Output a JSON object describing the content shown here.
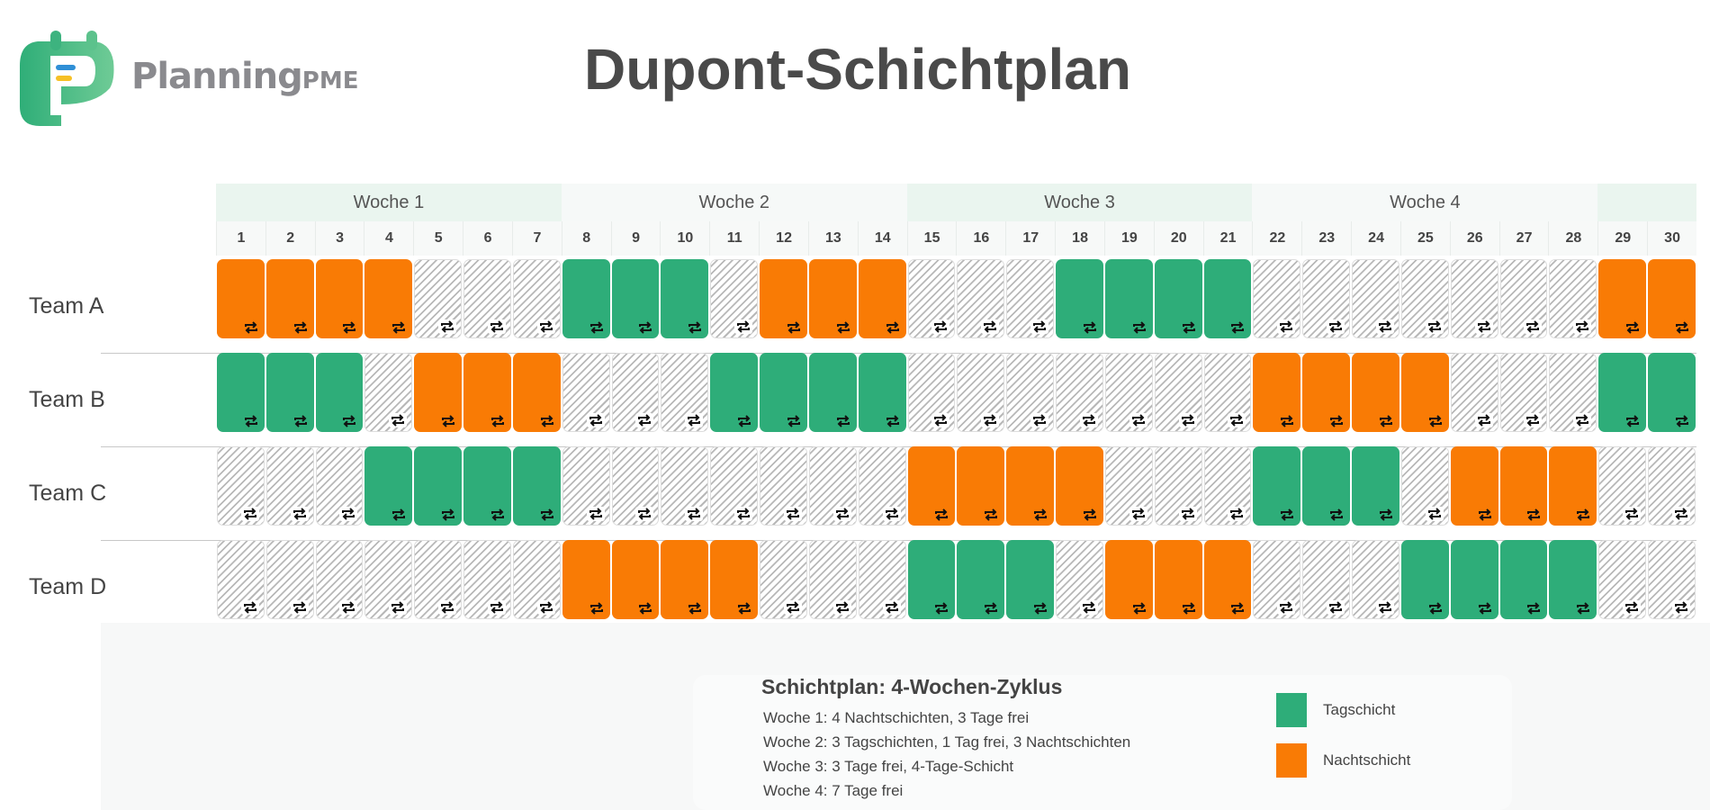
{
  "brand": {
    "name": "Planning",
    "suffix": "PME"
  },
  "title": "Dupont-Schichtplan",
  "colors": {
    "night": "#f97b05",
    "day": "#2ead79",
    "off": "hatched-grey"
  },
  "weeks": [
    {
      "label": "Woche 1",
      "days": 7
    },
    {
      "label": "Woche 2",
      "days": 7
    },
    {
      "label": "Woche 3",
      "days": 7
    },
    {
      "label": "Woche 4",
      "days": 7
    },
    {
      "label": "",
      "days": 2
    }
  ],
  "days": [
    "1",
    "2",
    "3",
    "4",
    "5",
    "6",
    "7",
    "8",
    "9",
    "10",
    "11",
    "12",
    "13",
    "14",
    "15",
    "16",
    "17",
    "18",
    "19",
    "20",
    "21",
    "22",
    "23",
    "24",
    "25",
    "26",
    "27",
    "28",
    "29",
    "30"
  ],
  "cell_icon": "repeat-icon",
  "teams": [
    {
      "name": "Team A",
      "shifts": [
        "N",
        "N",
        "N",
        "N",
        "F",
        "F",
        "F",
        "D",
        "D",
        "D",
        "F",
        "N",
        "N",
        "N",
        "F",
        "F",
        "F",
        "D",
        "D",
        "D",
        "D",
        "F",
        "F",
        "F",
        "F",
        "F",
        "F",
        "F",
        "N",
        "N"
      ]
    },
    {
      "name": "Team B",
      "shifts": [
        "D",
        "D",
        "D",
        "F",
        "N",
        "N",
        "N",
        "F",
        "F",
        "F",
        "D",
        "D",
        "D",
        "D",
        "F",
        "F",
        "F",
        "F",
        "F",
        "F",
        "F",
        "N",
        "N",
        "N",
        "N",
        "F",
        "F",
        "F",
        "D",
        "D"
      ]
    },
    {
      "name": "Team C",
      "shifts": [
        "F",
        "F",
        "F",
        "D",
        "D",
        "D",
        "D",
        "F",
        "F",
        "F",
        "F",
        "F",
        "F",
        "F",
        "N",
        "N",
        "N",
        "N",
        "F",
        "F",
        "F",
        "D",
        "D",
        "D",
        "F",
        "N",
        "N",
        "N",
        "F",
        "F"
      ]
    },
    {
      "name": "Team D",
      "shifts": [
        "F",
        "F",
        "F",
        "F",
        "F",
        "F",
        "F",
        "N",
        "N",
        "N",
        "N",
        "F",
        "F",
        "F",
        "D",
        "D",
        "D",
        "F",
        "N",
        "N",
        "N",
        "F",
        "F",
        "F",
        "D",
        "D",
        "D",
        "D",
        "F",
        "F"
      ]
    }
  ],
  "summary": {
    "title": "Schichtplan: 4-Wochen-Zyklus",
    "lines": [
      "Woche 1: 4 Nachtschichten, 3 Tage frei",
      "Woche 2: 3 Tagschichten, 1 Tag frei, 3 Nachtschichten",
      "Woche 3: 3 Tage frei, 4-Tage-Schicht",
      "Woche 4: 7 Tage frei"
    ]
  },
  "legend": [
    {
      "label": "Tagschicht",
      "color": "#2ead79"
    },
    {
      "label": "Nachtschicht",
      "color": "#f97b05"
    }
  ]
}
